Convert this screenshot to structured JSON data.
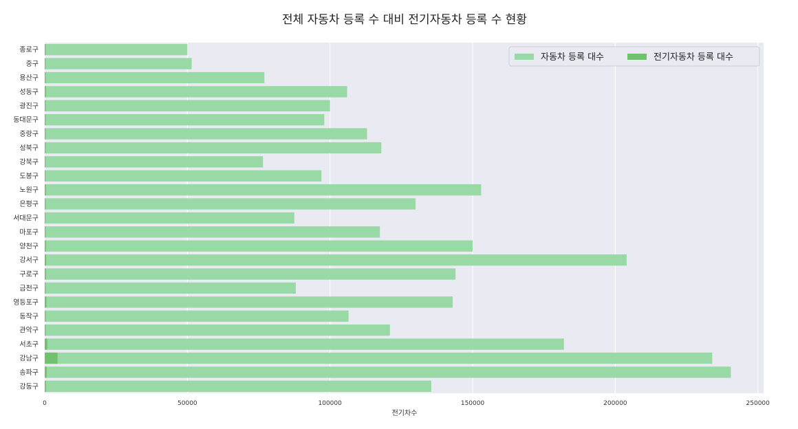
{
  "chart_data": {
    "type": "bar",
    "orientation": "horizontal",
    "title": "전체 자동차 등록 수 대비 전기자동차 등록 수 현황",
    "xlabel": "전기차수",
    "ylabel": "",
    "xlim": [
      0,
      252000
    ],
    "xticks": [
      "0",
      "50000",
      "100000",
      "150000",
      "200000",
      "250000"
    ],
    "grid": true,
    "legend_position": "top-right",
    "categories": [
      "종로구",
      "중구",
      "용산구",
      "성동구",
      "광진구",
      "동대문구",
      "중랑구",
      "성북구",
      "강북구",
      "도봉구",
      "노원구",
      "은평구",
      "서대문구",
      "마포구",
      "양천구",
      "강서구",
      "구로구",
      "금천구",
      "영등포구",
      "동작구",
      "관악구",
      "서초구",
      "강남구",
      "송파구",
      "강동구"
    ],
    "series": [
      {
        "name": "자동차 등록 대수",
        "color": "#98d9a6",
        "values": [
          50000,
          51500,
          77000,
          106000,
          100000,
          98000,
          113000,
          118000,
          76500,
          97000,
          153000,
          130000,
          87500,
          117500,
          150000,
          204000,
          144000,
          88000,
          143000,
          106500,
          121000,
          182000,
          234000,
          240500,
          135500
        ]
      },
      {
        "name": "전기자동차 등록 대수",
        "color": "#72c16f",
        "values": [
          300,
          200,
          300,
          400,
          300,
          300,
          300,
          300,
          200,
          200,
          400,
          300,
          200,
          300,
          400,
          500,
          400,
          300,
          600,
          300,
          300,
          900,
          4500,
          700,
          400
        ]
      }
    ]
  }
}
